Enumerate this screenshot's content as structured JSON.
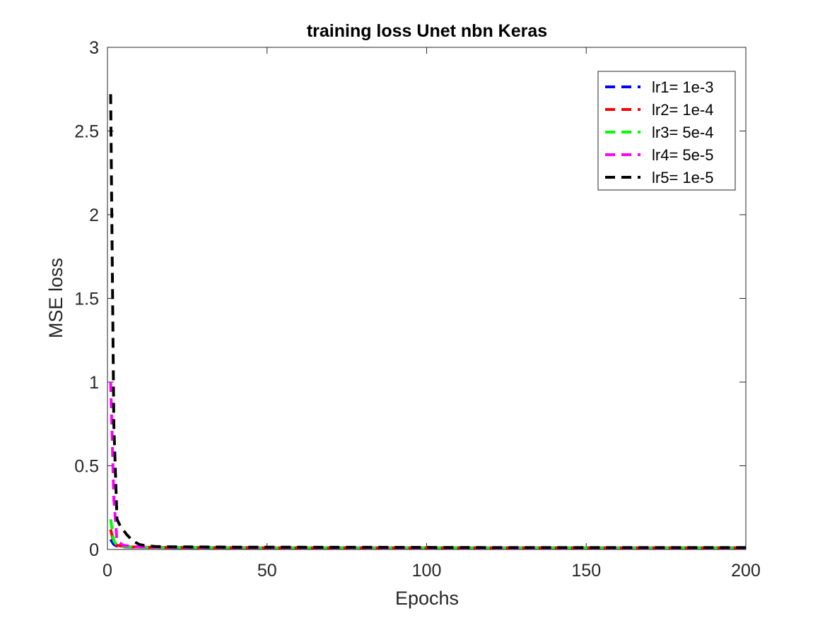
{
  "chart_data": {
    "type": "line",
    "title": "training loss Unet nbn Keras",
    "xlabel": "Epochs",
    "ylabel": "MSE loss",
    "xlim": [
      0,
      200
    ],
    "ylim": [
      0,
      3
    ],
    "xticks": [
      0,
      50,
      100,
      150,
      200
    ],
    "yticks": [
      0,
      0.5,
      1,
      1.5,
      2,
      2.5,
      3
    ],
    "xtick_labels": [
      "0",
      "50",
      "100",
      "150",
      "200"
    ],
    "ytick_labels": [
      "0",
      "0.5",
      "1",
      "1.5",
      "2",
      "2.5",
      "3"
    ],
    "grid": false,
    "line_style": "dashed",
    "legend_position": "top-right",
    "series": [
      {
        "name": "lr1= 1e-3",
        "color": "#0000ff",
        "x": [
          1,
          2,
          3,
          5,
          8,
          12,
          20,
          40,
          80,
          120,
          160,
          200
        ],
        "y": [
          0.06,
          0.03,
          0.02,
          0.016,
          0.014,
          0.013,
          0.012,
          0.011,
          0.01,
          0.01,
          0.01,
          0.01
        ]
      },
      {
        "name": "lr2= 1e-4",
        "color": "#ff0000",
        "x": [
          1,
          2,
          3,
          5,
          8,
          12,
          20,
          40,
          80,
          120,
          160,
          200
        ],
        "y": [
          0.12,
          0.04,
          0.025,
          0.018,
          0.015,
          0.013,
          0.012,
          0.011,
          0.01,
          0.01,
          0.01,
          0.01
        ]
      },
      {
        "name": "lr3= 5e-4",
        "color": "#00ff00",
        "x": [
          1,
          2,
          3,
          5,
          8,
          12,
          20,
          40,
          80,
          120,
          160,
          200
        ],
        "y": [
          0.18,
          0.05,
          0.025,
          0.018,
          0.015,
          0.013,
          0.012,
          0.011,
          0.01,
          0.01,
          0.01,
          0.01
        ]
      },
      {
        "name": "lr4= 5e-5",
        "color": "#ff00ff",
        "x": [
          1,
          2,
          3,
          5,
          8,
          12,
          20,
          40,
          80,
          120,
          160,
          200
        ],
        "y": [
          1.0,
          0.3,
          0.05,
          0.025,
          0.018,
          0.015,
          0.013,
          0.012,
          0.011,
          0.01,
          0.01,
          0.01
        ]
      },
      {
        "name": "lr5= 1e-5",
        "color": "#000000",
        "x": [
          1,
          2,
          3,
          4,
          6,
          8,
          10,
          12,
          15,
          20,
          40,
          80,
          120,
          160,
          200
        ],
        "y": [
          2.72,
          0.75,
          0.18,
          0.14,
          0.09,
          0.05,
          0.03,
          0.022,
          0.018,
          0.016,
          0.014,
          0.013,
          0.012,
          0.012,
          0.012
        ]
      }
    ]
  }
}
